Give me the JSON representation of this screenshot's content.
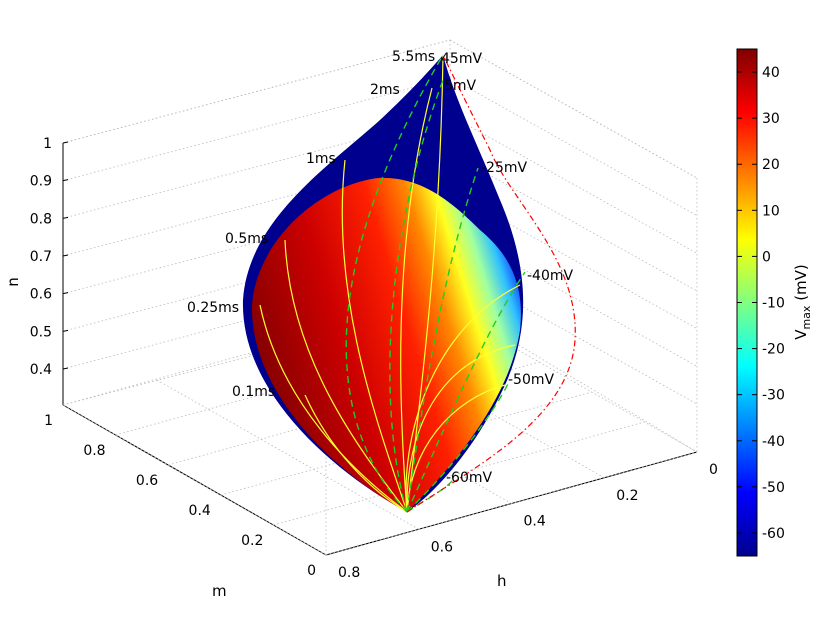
{
  "chart_data": {
    "type": "surface3d",
    "axes": {
      "n": {
        "label": "n",
        "ticks": [
          "0.4",
          "0.5",
          "0.6",
          "0.7",
          "0.8",
          "0.9",
          "1"
        ]
      },
      "m": {
        "label": "m",
        "ticks": [
          "0",
          "0.2",
          "0.4",
          "0.6",
          "0.8",
          "1"
        ]
      },
      "h": {
        "label": "h",
        "ticks": [
          "0",
          "0.2",
          "0.4",
          "0.6",
          "0.8"
        ]
      }
    },
    "colorbar": {
      "label": "V",
      "label_sub": "max",
      "label_unit": " (mV)",
      "ticks": [
        "40",
        "30",
        "20",
        "10",
        "0",
        "-10",
        "-20",
        "-30",
        "-40",
        "-50",
        "-60"
      ],
      "range": [
        -65,
        45
      ]
    },
    "time_contours": [
      "5.5ms",
      "2ms",
      "1ms",
      "0.5ms",
      "0.25ms",
      "0.1ms"
    ],
    "voltage_contours": [
      "45mV",
      "5mV",
      "-25mV",
      "-40mV",
      "-50mV",
      "-60mV"
    ],
    "colors": {
      "surface_outer": "#00008f",
      "time_contour": "#ffff33",
      "voltage_contour": "#22cc22",
      "reference_curve": "#ff0000"
    }
  }
}
